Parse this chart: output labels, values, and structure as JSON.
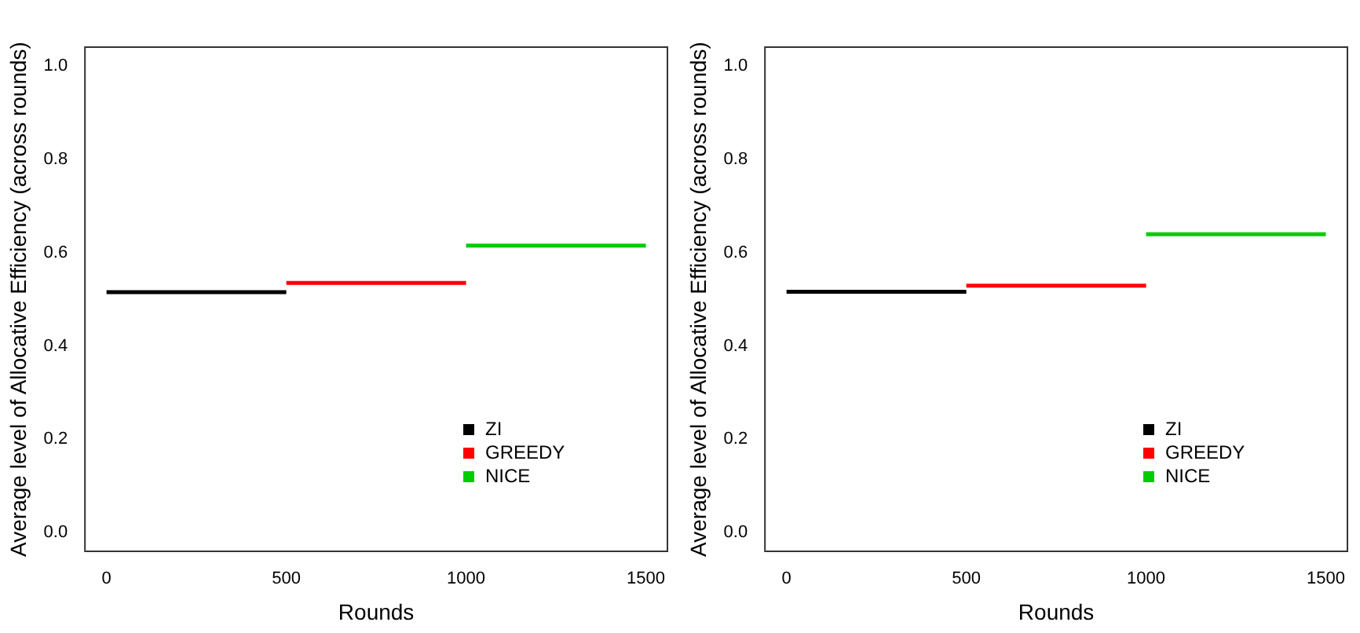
{
  "chart_data": [
    {
      "type": "line",
      "xlabel": "Rounds",
      "ylabel": "Average level of Allocative Efficiency (across rounds)",
      "xlim": [
        -60,
        1560
      ],
      "ylim": [
        -0.04,
        1.04
      ],
      "xticks": [
        0,
        500,
        1000,
        1500
      ],
      "yticks": [
        {
          "value": 0,
          "label": "0.0"
        },
        {
          "value": 0.2,
          "label": "0.2"
        },
        {
          "value": 0.4,
          "label": "0.4"
        },
        {
          "value": 0.6,
          "label": "0.6"
        },
        {
          "value": 0.8,
          "label": "0.8"
        },
        {
          "value": 1,
          "label": "1.0"
        }
      ],
      "grid": false,
      "legend": "bottom right",
      "marker": "none",
      "line_style": "solid",
      "series": [
        {
          "name": "ZI",
          "color": "#000000",
          "x": [
            0,
            500
          ],
          "values": [
            0.515,
            0.515
          ]
        },
        {
          "name": "GREEDY",
          "color": "#ff0000",
          "x": [
            500,
            1000
          ],
          "values": [
            0.535,
            0.535
          ]
        },
        {
          "name": "NICE",
          "color": "#00cc00",
          "x": [
            1000,
            1500
          ],
          "values": [
            0.615,
            0.615
          ]
        }
      ]
    },
    {
      "type": "line",
      "xlabel": "Rounds",
      "ylabel": "Average level of Allocative Efficiency (across rounds)",
      "xlim": [
        -60,
        1560
      ],
      "ylim": [
        -0.04,
        1.04
      ],
      "xticks": [
        0,
        500,
        1000,
        1500
      ],
      "yticks": [
        {
          "value": 0,
          "label": "0.0"
        },
        {
          "value": 0.2,
          "label": "0.2"
        },
        {
          "value": 0.4,
          "label": "0.4"
        },
        {
          "value": 0.6,
          "label": "0.6"
        },
        {
          "value": 0.8,
          "label": "0.8"
        },
        {
          "value": 1,
          "label": "1.0"
        }
      ],
      "grid": false,
      "legend": "bottom right",
      "marker": "none",
      "line_style": "solid",
      "series": [
        {
          "name": "ZI",
          "color": "#000000",
          "x": [
            0,
            500
          ],
          "values": [
            0.516,
            0.516
          ]
        },
        {
          "name": "GREEDY",
          "color": "#ff0000",
          "x": [
            500,
            1000
          ],
          "values": [
            0.529,
            0.529
          ]
        },
        {
          "name": "NICE",
          "color": "#00cc00",
          "x": [
            1000,
            1500
          ],
          "values": [
            0.639,
            0.639
          ]
        }
      ]
    }
  ]
}
